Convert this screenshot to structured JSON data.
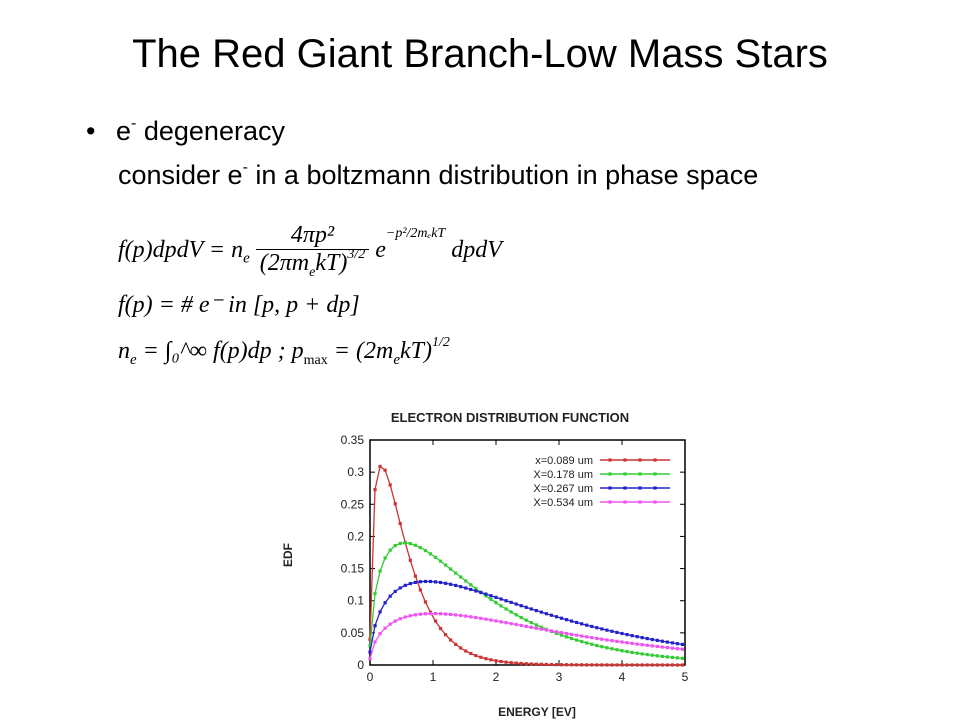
{
  "slide": {
    "title": "The Red Giant Branch-Low Mass Stars",
    "bullet_text_pre": "e",
    "bullet_sup": "-",
    "bullet_text_post": " degeneracy",
    "sub_text_pre": "consider e",
    "sub_sup": "-",
    "sub_text_post": " in a boltzmann distribution in phase space"
  },
  "equations": {
    "eq1_lhs": "f(p)dpdV = n",
    "eq1_sub": "e",
    "eq1_num": "4πp²",
    "eq1_den": "(2πm",
    "eq1_den_sub": "e",
    "eq1_den_tail": "kT)",
    "eq1_den_sup": "3/2",
    "eq1_exp": "e",
    "eq1_exp_sup": "−p²/2mₑkT",
    "eq1_tail": "dpdV",
    "eq2": "f(p) = # e⁻ in [p, p + dp]",
    "eq3_pre": "n",
    "eq3_sub": "e",
    "eq3_mid": " = ∫₀^∞ f(p)dp ; p",
    "eq3_max": "max",
    "eq3_post": " = (2m",
    "eq3_sub2": "e",
    "eq3_tail": "kT)",
    "eq3_sup": "1/2"
  },
  "chart_data": {
    "type": "scatter",
    "title": "ELECTRON DISTRIBUTION FUNCTION",
    "xlabel": "ENERGY [EV]",
    "ylabel": "EDF",
    "xlim": [
      0,
      5
    ],
    "ylim": [
      0,
      0.35
    ],
    "xticks": [
      "0",
      "1",
      "2",
      "3",
      "4",
      "5"
    ],
    "yticks": [
      "0",
      "0.05",
      "0.1",
      "0.15",
      "0.2",
      "0.25",
      "0.3",
      "0.35"
    ],
    "grid": false,
    "legend_position": "top-right",
    "series": [
      {
        "name": "x=0.089 um",
        "color": "#cc3333",
        "peak_x": 0.18,
        "peak_y": 0.31
      },
      {
        "name": "X=0.178 um",
        "color": "#33cc33",
        "peak_x": 0.55,
        "peak_y": 0.19
      },
      {
        "name": "X=0.267 um",
        "color": "#2222cc",
        "peak_x": 0.9,
        "peak_y": 0.13
      },
      {
        "name": "X=0.534 um",
        "color": "#ee55ee",
        "peak_x": 1.0,
        "peak_y": 0.08
      }
    ]
  }
}
